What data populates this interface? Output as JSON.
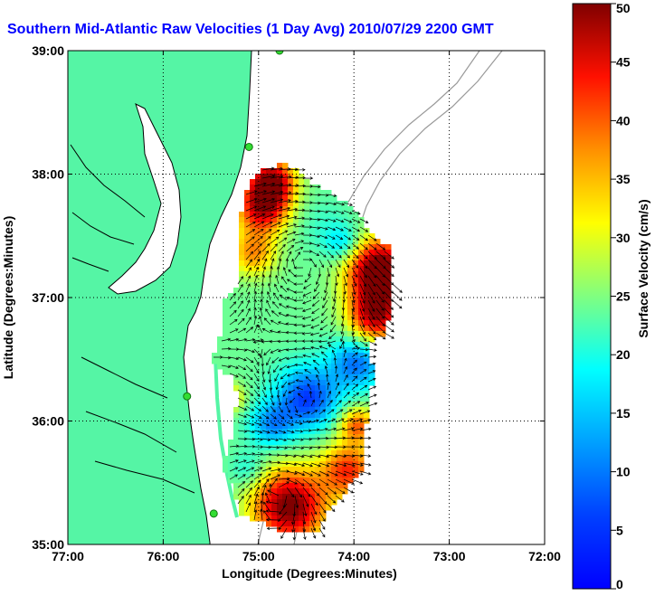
{
  "title": "Southern Mid-Atlantic Raw Velocities (1 Day Avg) 2010/07/29 2200 GMT",
  "map": {
    "xlabel": "Longitude (Degrees:Minutes)",
    "ylabel": "Latitude (Degrees:Minutes)",
    "lon_range": [
      -77,
      -72
    ],
    "lat_range": [
      35,
      39
    ],
    "lon_ticks": [
      "77:00",
      "76:00",
      "75:00",
      "74:00",
      "73:00",
      "72:00"
    ],
    "lat_ticks": [
      "35:00",
      "36:00",
      "37:00",
      "38:00",
      "39:00"
    ],
    "grid": "dotted",
    "land_color": "#55f5a5",
    "coast_color": "#000000",
    "bathymetry_color": "#999999"
  },
  "colorbar": {
    "label": "Surface Velocity (cm/s)",
    "ticks": [
      "0",
      "5",
      "10",
      "15",
      "20",
      "25",
      "30",
      "35",
      "40",
      "45",
      "50"
    ],
    "range": [
      0,
      50
    ],
    "colormap": "jet"
  },
  "stations": [
    {
      "lon": -74.78,
      "lat": 39.0
    },
    {
      "lon": -75.1,
      "lat": 38.22
    },
    {
      "lon": -75.75,
      "lat": 36.2
    },
    {
      "lon": -75.47,
      "lat": 35.25
    }
  ]
}
